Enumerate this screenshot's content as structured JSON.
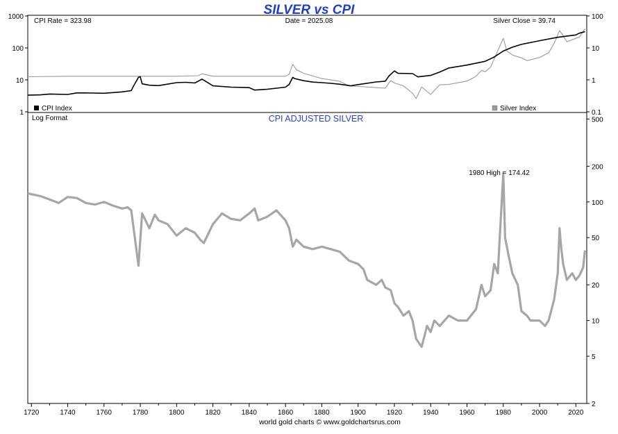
{
  "header": {
    "title": "SILVER vs CPI",
    "title_color": "#1f3fcc"
  },
  "footer": {
    "credit": "world gold charts © www.goldchartsrus.com",
    "credit_color": "#1a2ea8"
  },
  "chart_data": [
    {
      "type": "line",
      "panel": "top",
      "info": {
        "cpi_rate": "CPI Rate = 323.98",
        "date": "Date = 2025.08",
        "silver_close": "Silver Close = 39.74"
      },
      "legend": [
        {
          "label": "CPI Index",
          "color": "#000000"
        },
        {
          "label": "Silver Index",
          "color": "#999999"
        }
      ],
      "legend_placement": "bottom",
      "xlim": [
        1718,
        2026
      ],
      "y_scale": "log",
      "y_left": {
        "lim": [
          1,
          1000
        ],
        "ticks": [
          "1",
          "10",
          "100",
          "1000"
        ]
      },
      "y_right": {
        "lim": [
          0.1,
          100
        ],
        "ticks": [
          "0.1",
          "1",
          "10",
          "100"
        ]
      },
      "series": [
        {
          "name": "CPI Index",
          "color": "#000000",
          "axis": "left",
          "x": [
            1718,
            1725,
            1730,
            1740,
            1745,
            1750,
            1760,
            1770,
            1775,
            1776,
            1779,
            1780,
            1781,
            1785,
            1790,
            1800,
            1805,
            1810,
            1814,
            1815,
            1820,
            1830,
            1840,
            1843,
            1850,
            1860,
            1862,
            1864,
            1865,
            1870,
            1875,
            1880,
            1885,
            1890,
            1896,
            1900,
            1910,
            1915,
            1917,
            1920,
            1922,
            1930,
            1933,
            1940,
            1945,
            1950,
            1960,
            1970,
            1975,
            1980,
            1985,
            1990,
            2000,
            2010,
            2020,
            2022,
            2025
          ],
          "y": [
            3.3,
            3.4,
            3.6,
            3.5,
            3.9,
            3.9,
            3.8,
            4.2,
            4.6,
            6,
            12,
            12.5,
            7.5,
            6.8,
            6.6,
            8.2,
            8.4,
            8,
            10.5,
            9.8,
            6.5,
            5.9,
            5.7,
            4.8,
            5.1,
            5.9,
            7.2,
            12,
            11,
            9.4,
            8.5,
            8.2,
            7.8,
            7.3,
            6.5,
            7.1,
            8.6,
            9.1,
            13.2,
            19,
            16,
            15.7,
            12.4,
            13.8,
            17.6,
            23.5,
            29,
            38,
            52,
            80,
            105,
            129,
            168,
            215,
            255,
            290,
            323
          ]
        },
        {
          "name": "Silver Index",
          "color": "#999999",
          "axis": "right",
          "x": [
            1718,
            1740,
            1760,
            1780,
            1800,
            1812,
            1814,
            1820,
            1840,
            1860,
            1862,
            1864,
            1866,
            1870,
            1880,
            1890,
            1895,
            1900,
            1905,
            1910,
            1915,
            1918,
            1920,
            1925,
            1930,
            1932,
            1935,
            1940,
            1945,
            1950,
            1960,
            1965,
            1968,
            1970,
            1973,
            1975,
            1980,
            1982,
            1985,
            1990,
            1993,
            2000,
            2005,
            2008,
            2011,
            2013,
            2015,
            2020,
            2022,
            2025
          ],
          "y": [
            1.25,
            1.3,
            1.3,
            1.3,
            1.3,
            1.35,
            1.55,
            1.3,
            1.3,
            1.3,
            1.5,
            3.1,
            2.1,
            1.6,
            1.1,
            0.9,
            0.65,
            0.62,
            0.6,
            0.57,
            0.55,
            0.95,
            0.8,
            0.65,
            0.38,
            0.26,
            0.6,
            0.35,
            0.7,
            0.72,
            0.92,
            1.29,
            2,
            1.8,
            2.5,
            4.5,
            20,
            8,
            6,
            4.9,
            4,
            5,
            7,
            14,
            35,
            24,
            15.6,
            20,
            22,
            39.74
          ]
        }
      ]
    },
    {
      "type": "line",
      "panel": "bottom",
      "title": "CPI ADJUSTED SILVER",
      "title_color": "#2b3fd0",
      "scale_note": "Log Format",
      "annotation": "1980 High = 174.42",
      "xlim": [
        1718,
        2026
      ],
      "y_scale": "log",
      "ylim": [
        2,
        560
      ],
      "y_ticks": [
        "2",
        "5",
        "10",
        "20",
        "50",
        "100",
        "200",
        "500"
      ],
      "x_ticks": [
        "1720",
        "1740",
        "1760",
        "1780",
        "1800",
        "1820",
        "1840",
        "1860",
        "1880",
        "1900",
        "1920",
        "1940",
        "1960",
        "1980",
        "2000",
        "2020"
      ],
      "grid": false,
      "series": [
        {
          "name": "CPI Adjusted Silver",
          "color": "#a6a6a6",
          "x": [
            1718,
            1725,
            1730,
            1735,
            1740,
            1745,
            1750,
            1755,
            1760,
            1765,
            1770,
            1773,
            1775,
            1777,
            1779,
            1781,
            1785,
            1788,
            1790,
            1795,
            1800,
            1805,
            1810,
            1813,
            1815,
            1820,
            1825,
            1830,
            1835,
            1840,
            1843,
            1845,
            1850,
            1855,
            1860,
            1862,
            1864,
            1866,
            1870,
            1875,
            1880,
            1885,
            1890,
            1895,
            1900,
            1903,
            1905,
            1910,
            1913,
            1915,
            1918,
            1920,
            1922,
            1925,
            1928,
            1930,
            1932,
            1935,
            1938,
            1940,
            1942,
            1945,
            1950,
            1955,
            1960,
            1965,
            1968,
            1970,
            1973,
            1975,
            1977,
            1980,
            1981,
            1983,
            1985,
            1988,
            1990,
            1993,
            1995,
            2000,
            2003,
            2005,
            2008,
            2010,
            2011,
            2012,
            2013,
            2015,
            2018,
            2020,
            2022,
            2024,
            2025
          ],
          "y": [
            118,
            112,
            105,
            98,
            110,
            108,
            98,
            95,
            100,
            93,
            88,
            90,
            85,
            50,
            29,
            80,
            60,
            78,
            70,
            65,
            52,
            60,
            55,
            48,
            45,
            65,
            80,
            72,
            70,
            80,
            88,
            70,
            75,
            85,
            70,
            60,
            42,
            48,
            42,
            40,
            42,
            40,
            38,
            32,
            30,
            27,
            22,
            20,
            22,
            19,
            18,
            14,
            13,
            11,
            12,
            10,
            7,
            6,
            9,
            8,
            10,
            9,
            11,
            10,
            10,
            12.5,
            20,
            16,
            18,
            30,
            25,
            174.42,
            50,
            35,
            25,
            20,
            12,
            11,
            10,
            10,
            9,
            10,
            15,
            25,
            60,
            40,
            30,
            22,
            25,
            22,
            24,
            28,
            39
          ]
        }
      ]
    }
  ]
}
